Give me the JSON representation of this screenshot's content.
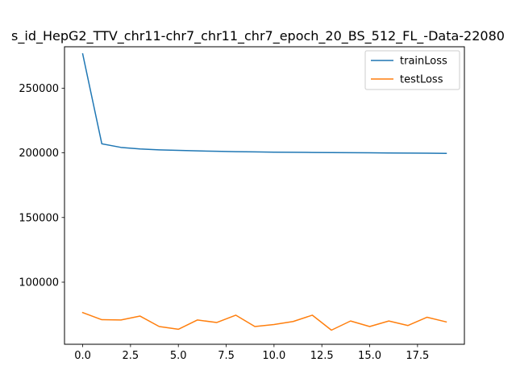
{
  "chart_data": {
    "type": "line",
    "title": "s_id_HepG2_TTV_chr11-chr7_chr11_chr7_epoch_20_BS_512_FL_-Data-22080",
    "xlabel": "",
    "ylabel": "",
    "x": [
      0,
      1,
      2,
      3,
      4,
      5,
      6,
      7,
      8,
      9,
      10,
      11,
      12,
      13,
      14,
      15,
      16,
      17,
      18,
      19
    ],
    "xlim": [
      -0.95,
      19.95
    ],
    "ylim": [
      52000,
      282000
    ],
    "xticks": [
      0.0,
      2.5,
      5.0,
      7.5,
      10.0,
      12.5,
      15.0,
      17.5
    ],
    "xtick_labels": [
      "0.0",
      "2.5",
      "5.0",
      "7.5",
      "10.0",
      "12.5",
      "15.0",
      "17.5"
    ],
    "yticks": [
      100000,
      150000,
      200000,
      250000
    ],
    "ytick_labels": [
      "100000",
      "150000",
      "200000",
      "250000"
    ],
    "grid": false,
    "legend_position": "top-right",
    "series": [
      {
        "name": "trainLoss",
        "color": "#1f77b4",
        "values": [
          276500,
          207000,
          204200,
          203000,
          202300,
          201900,
          201500,
          201200,
          200900,
          200700,
          200500,
          200400,
          200300,
          200200,
          200100,
          200000,
          199900,
          199800,
          199700,
          199600
        ]
      },
      {
        "name": "testLoss",
        "color": "#ff7f0e",
        "values": [
          76500,
          71000,
          70800,
          73800,
          65700,
          63600,
          70800,
          68800,
          74500,
          65700,
          67300,
          69600,
          74500,
          62900,
          70000,
          65700,
          70000,
          66500,
          72900,
          69300
        ]
      }
    ]
  }
}
